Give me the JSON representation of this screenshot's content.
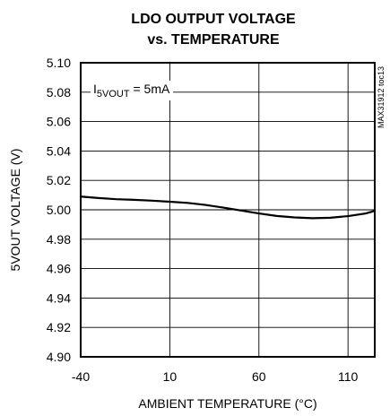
{
  "chart_data": {
    "type": "line",
    "title_line1": "LDO OUTPUT VOLTAGE",
    "title_line2": "vs. TEMPERATURE",
    "xlabel": "AMBIENT TEMPERATURE (°C)",
    "ylabel": "5VOUT VOLTAGE (V)",
    "xlim": [
      -40,
      125
    ],
    "ylim": [
      4.9,
      5.1
    ],
    "x_ticks": [
      -40,
      10,
      60,
      110
    ],
    "x_tick_labels": [
      "-40",
      "10",
      "60",
      "110"
    ],
    "y_ticks": [
      4.9,
      4.92,
      4.94,
      4.96,
      4.98,
      5.0,
      5.02,
      5.04,
      5.06,
      5.08,
      5.1
    ],
    "y_tick_labels": [
      "4.90",
      "4.92",
      "4.94",
      "4.96",
      "4.98",
      "5.00",
      "5.02",
      "5.04",
      "5.06",
      "5.08",
      "5.10"
    ],
    "grid": true,
    "condition": {
      "symbol": "I",
      "subscript": "5VOUT",
      "rest": " = 5mA"
    },
    "figure_code": "MAX31912 toc13",
    "series": [
      {
        "x": [
          -40,
          -30,
          -20,
          -10,
          0,
          10,
          20,
          30,
          40,
          50,
          60,
          70,
          80,
          90,
          100,
          110,
          120,
          125
        ],
        "y": [
          5.009,
          5.008,
          5.0072,
          5.0068,
          5.0062,
          5.0055,
          5.0047,
          5.0033,
          5.0015,
          4.9995,
          4.9975,
          4.9958,
          4.9948,
          4.9943,
          4.9946,
          4.9957,
          4.9975,
          4.9993
        ]
      }
    ],
    "colors": {
      "line": "#000000",
      "grid": "#000000",
      "background": "#ffffff"
    }
  }
}
